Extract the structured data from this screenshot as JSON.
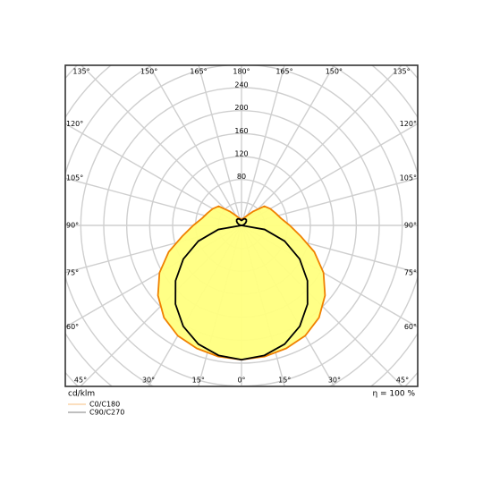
{
  "chart_data": {
    "type": "polar",
    "unit_label": "cd/klm",
    "efficiency_label": "η = 100 %",
    "angles": [
      0,
      10,
      20,
      30,
      40,
      50,
      60,
      70,
      80,
      90,
      100,
      110,
      120,
      130,
      140,
      150,
      160,
      170,
      180
    ],
    "series": [
      {
        "name": "C0/C180",
        "color": "#f08000",
        "fill": "#ffff80",
        "values": [
          234,
          232,
          228,
          222,
          210,
          190,
          165,
          135,
          104,
          84,
          70,
          63,
          58,
          52,
          32,
          20,
          14,
          12,
          11
        ]
      },
      {
        "name": "C90/C270",
        "color": "#000000",
        "values": [
          234,
          230,
          220,
          203,
          179,
          150,
          117,
          80,
          41,
          0,
          2,
          5,
          8,
          11,
          13,
          13,
          12,
          10,
          8
        ]
      }
    ],
    "rlim": [
      0,
      240
    ],
    "rticks": [
      80,
      120,
      160,
      200,
      240
    ],
    "angle_ticks": [
      {
        "value": 0,
        "label": "0°"
      },
      {
        "value": 15,
        "label": "15°"
      },
      {
        "value": 30,
        "label": "30°"
      },
      {
        "value": 45,
        "label": "45°"
      },
      {
        "value": 60,
        "label": "60°"
      },
      {
        "value": 75,
        "label": "75°"
      },
      {
        "value": 90,
        "label": "90°"
      },
      {
        "value": 105,
        "label": "105°"
      },
      {
        "value": 120,
        "label": "120°"
      },
      {
        "value": 135,
        "label": "135°"
      },
      {
        "value": 150,
        "label": "150°"
      },
      {
        "value": 165,
        "label": "165°"
      },
      {
        "value": 180,
        "label": "180°"
      }
    ]
  }
}
